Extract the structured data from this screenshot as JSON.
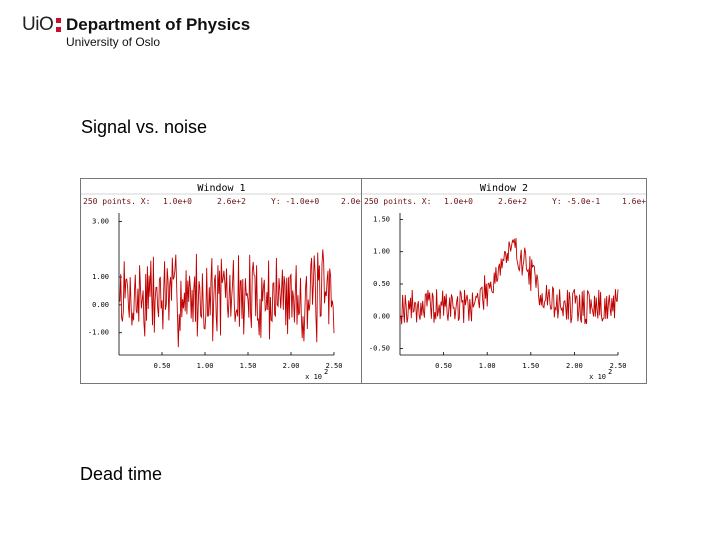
{
  "header": {
    "logo_uio": "UiO",
    "department": "Department of Physics",
    "university": "University of Oslo"
  },
  "headings": {
    "first": "Signal vs. noise",
    "second": "Dead time"
  },
  "colors": {
    "trace": "#c00000",
    "logo_dots": "#c8102e"
  },
  "chart_data": [
    {
      "type": "line",
      "title": "Window 1",
      "info": [
        "250 points. X:",
        "1.0e+0",
        "2.6e+2",
        "Y: -1.0e+0",
        "2.0e+"
      ],
      "x_multiplier": "x 10",
      "x_multiplier_exp": "2",
      "xlim": [
        0,
        250
      ],
      "ylim": [
        -1.8,
        3.3
      ],
      "x_ticks": [
        {
          "v": 50,
          "label": "0.50"
        },
        {
          "v": 100,
          "label": "1.00"
        },
        {
          "v": 150,
          "label": "1.50"
        },
        {
          "v": 200,
          "label": "2.00"
        },
        {
          "v": 250,
          "label": "2.50"
        }
      ],
      "y_ticks": [
        {
          "v": 3,
          "label": "3.00"
        },
        {
          "v": 1,
          "label": "1.00"
        },
        {
          "v": 0,
          "label": "0.00"
        },
        {
          "v": -1,
          "label": "-1.00"
        }
      ],
      "signal": "noise",
      "y_center": 0.3,
      "y_spread": 2.6,
      "seed": 7
    },
    {
      "type": "line",
      "title": "Window 2",
      "info": [
        "250 points. X:",
        "1.0e+0",
        "2.6e+2",
        "Y: -5.0e-1",
        "1.6e+"
      ],
      "x_multiplier": "x 10",
      "x_multiplier_exp": "2",
      "xlim": [
        0,
        250
      ],
      "ylim": [
        -0.6,
        1.6
      ],
      "x_ticks": [
        {
          "v": 50,
          "label": "0.50"
        },
        {
          "v": 100,
          "label": "1.00"
        },
        {
          "v": 150,
          "label": "1.50"
        },
        {
          "v": 200,
          "label": "2.00"
        },
        {
          "v": 250,
          "label": "2.50"
        }
      ],
      "y_ticks": [
        {
          "v": 1.5,
          "label": "1.50"
        },
        {
          "v": 1,
          "label": "1.00"
        },
        {
          "v": 0.5,
          "label": "0.50"
        },
        {
          "v": 0,
          "label": "0.00"
        },
        {
          "v": -0.5,
          "label": "-0.50"
        }
      ],
      "signal": "gaussian",
      "peak_x": 130,
      "peak_width": 28,
      "peak_height": 0.85,
      "baseline": 0.15,
      "y_spread": 0.55,
      "seed": 19
    }
  ]
}
